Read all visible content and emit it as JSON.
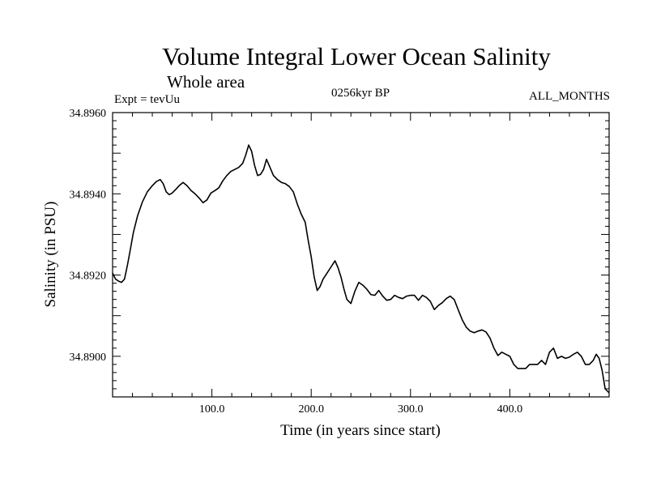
{
  "header": {
    "title": "Volume Integral Lower Ocean Salinity",
    "subtitle": "Whole area",
    "experiment": "Expt = tevUu",
    "period": "0256kyr BP",
    "months": "ALL_MONTHS"
  },
  "chart_data": {
    "type": "line",
    "title": "Volume Integral Lower Ocean Salinity",
    "xlabel": "Time (in years since start)",
    "ylabel": "Salinity (in PSU)",
    "xlim": [
      0,
      500
    ],
    "ylim": [
      34.889,
      34.896
    ],
    "x_ticks": [
      100,
      200,
      300,
      400
    ],
    "x_tick_labels": [
      "100.0",
      "200.0",
      "300.0",
      "400.0"
    ],
    "y_ticks": [
      34.89,
      34.892,
      34.894,
      34.896
    ],
    "y_tick_labels": [
      "34.8900",
      "34.8920",
      "34.8940",
      "34.8960"
    ],
    "grid": false,
    "series": [
      {
        "values": [
          [
            0,
            34.89205
          ],
          [
            3,
            34.8919
          ],
          [
            6,
            34.89185
          ],
          [
            9,
            34.89182
          ],
          [
            12,
            34.8919
          ],
          [
            15,
            34.89225
          ],
          [
            18,
            34.89265
          ],
          [
            21,
            34.89305
          ],
          [
            25,
            34.89345
          ],
          [
            30,
            34.8938
          ],
          [
            35,
            34.89405
          ],
          [
            40,
            34.8942
          ],
          [
            44,
            34.8943
          ],
          [
            48,
            34.89435
          ],
          [
            51,
            34.89425
          ],
          [
            54,
            34.89405
          ],
          [
            57,
            34.89398
          ],
          [
            60,
            34.89402
          ],
          [
            64,
            34.89412
          ],
          [
            67,
            34.8942
          ],
          [
            71,
            34.89428
          ],
          [
            75,
            34.8942
          ],
          [
            79,
            34.89408
          ],
          [
            83,
            34.894
          ],
          [
            87,
            34.8939
          ],
          [
            91,
            34.89378
          ],
          [
            95,
            34.89385
          ],
          [
            99,
            34.89402
          ],
          [
            103,
            34.89408
          ],
          [
            107,
            34.89415
          ],
          [
            111,
            34.89432
          ],
          [
            115,
            34.89445
          ],
          [
            119,
            34.89455
          ],
          [
            123,
            34.8946
          ],
          [
            127,
            34.89465
          ],
          [
            131,
            34.89475
          ],
          [
            134,
            34.89495
          ],
          [
            137,
            34.8952
          ],
          [
            140,
            34.89505
          ],
          [
            143,
            34.8947
          ],
          [
            146,
            34.89445
          ],
          [
            149,
            34.89448
          ],
          [
            152,
            34.8946
          ],
          [
            155,
            34.89485
          ],
          [
            158,
            34.89468
          ],
          [
            162,
            34.89445
          ],
          [
            166,
            34.89435
          ],
          [
            170,
            34.89428
          ],
          [
            174,
            34.89425
          ],
          [
            178,
            34.89418
          ],
          [
            182,
            34.89405
          ],
          [
            186,
            34.89375
          ],
          [
            190,
            34.8935
          ],
          [
            194,
            34.8933
          ],
          [
            197,
            34.89285
          ],
          [
            200,
            34.89245
          ],
          [
            203,
            34.89195
          ],
          [
            206,
            34.89162
          ],
          [
            209,
            34.89172
          ],
          [
            212,
            34.8919
          ],
          [
            216,
            34.89205
          ],
          [
            220,
            34.8922
          ],
          [
            224,
            34.89235
          ],
          [
            227,
            34.89218
          ],
          [
            230,
            34.89195
          ],
          [
            233,
            34.89165
          ],
          [
            236,
            34.8914
          ],
          [
            240,
            34.8913
          ],
          [
            244,
            34.8916
          ],
          [
            248,
            34.89182
          ],
          [
            252,
            34.89175
          ],
          [
            256,
            34.89165
          ],
          [
            260,
            34.89152
          ],
          [
            264,
            34.8915
          ],
          [
            268,
            34.89162
          ],
          [
            272,
            34.89148
          ],
          [
            276,
            34.89138
          ],
          [
            280,
            34.8914
          ],
          [
            284,
            34.8915
          ],
          [
            288,
            34.89145
          ],
          [
            292,
            34.89142
          ],
          [
            296,
            34.89148
          ],
          [
            300,
            34.8915
          ],
          [
            304,
            34.8915
          ],
          [
            308,
            34.89138
          ],
          [
            312,
            34.8915
          ],
          [
            316,
            34.89145
          ],
          [
            320,
            34.89135
          ],
          [
            324,
            34.89115
          ],
          [
            328,
            34.89125
          ],
          [
            332,
            34.89132
          ],
          [
            336,
            34.89142
          ],
          [
            340,
            34.89148
          ],
          [
            344,
            34.8914
          ],
          [
            348,
            34.89115
          ],
          [
            352,
            34.8909
          ],
          [
            356,
            34.89072
          ],
          [
            360,
            34.89062
          ],
          [
            364,
            34.89058
          ],
          [
            368,
            34.89062
          ],
          [
            372,
            34.89065
          ],
          [
            376,
            34.8906
          ],
          [
            380,
            34.89045
          ],
          [
            384,
            34.8902
          ],
          [
            388,
            34.89002
          ],
          [
            392,
            34.8901
          ],
          [
            396,
            34.89005
          ],
          [
            400,
            34.89
          ],
          [
            404,
            34.8898
          ],
          [
            408,
            34.8897
          ],
          [
            412,
            34.8897
          ],
          [
            416,
            34.8897
          ],
          [
            420,
            34.8898
          ],
          [
            424,
            34.8898
          ],
          [
            428,
            34.8898
          ],
          [
            432,
            34.8899
          ],
          [
            436,
            34.8898
          ],
          [
            440,
            34.8901
          ],
          [
            444,
            34.8902
          ],
          [
            448,
            34.88995
          ],
          [
            452,
            34.89
          ],
          [
            456,
            34.88995
          ],
          [
            460,
            34.88998
          ],
          [
            464,
            34.89005
          ],
          [
            468,
            34.8901
          ],
          [
            472,
            34.89
          ],
          [
            476,
            34.8898
          ],
          [
            480,
            34.8898
          ],
          [
            484,
            34.8899
          ],
          [
            487,
            34.89005
          ],
          [
            490,
            34.88995
          ],
          [
            493,
            34.88965
          ],
          [
            496,
            34.8892
          ],
          [
            500,
            34.8891
          ]
        ]
      }
    ]
  }
}
